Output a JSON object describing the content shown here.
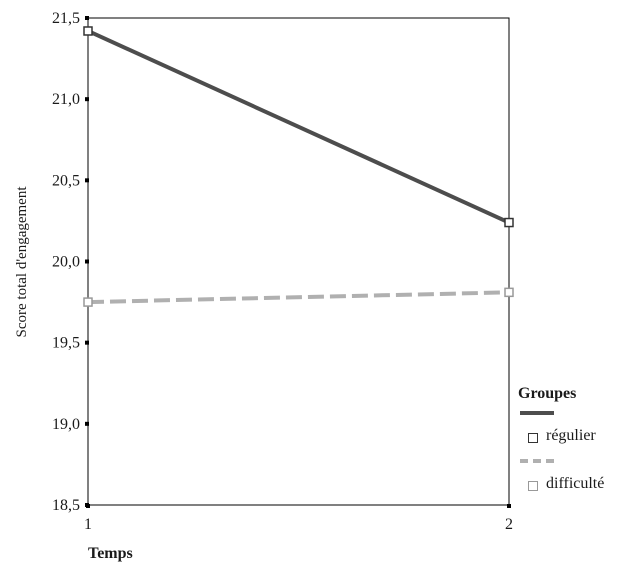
{
  "chart_data": {
    "type": "line",
    "title": "",
    "xlabel": "Temps",
    "ylabel": "Score total d'engagement",
    "x": [
      1,
      2
    ],
    "x_tick_labels": [
      "1",
      "2"
    ],
    "ylim": [
      18.5,
      21.5
    ],
    "y_ticks": [
      18.5,
      19.0,
      19.5,
      20.0,
      20.5,
      21.0,
      21.5
    ],
    "y_tick_labels": [
      "18,5",
      "19,0",
      "19,5",
      "20,0",
      "20,5",
      "21,0",
      "21,5"
    ],
    "grid": false,
    "legend_title": "Groupes",
    "legend_position": "right",
    "series": [
      {
        "name": "régulier",
        "values": [
          21.42,
          20.24
        ],
        "color": "#4d4d4d",
        "dash": "solid",
        "marker": "square"
      },
      {
        "name": "difficulté",
        "values": [
          19.75,
          19.81
        ],
        "color": "#b0b0b0",
        "dash": "dashed",
        "marker": "square"
      }
    ]
  }
}
